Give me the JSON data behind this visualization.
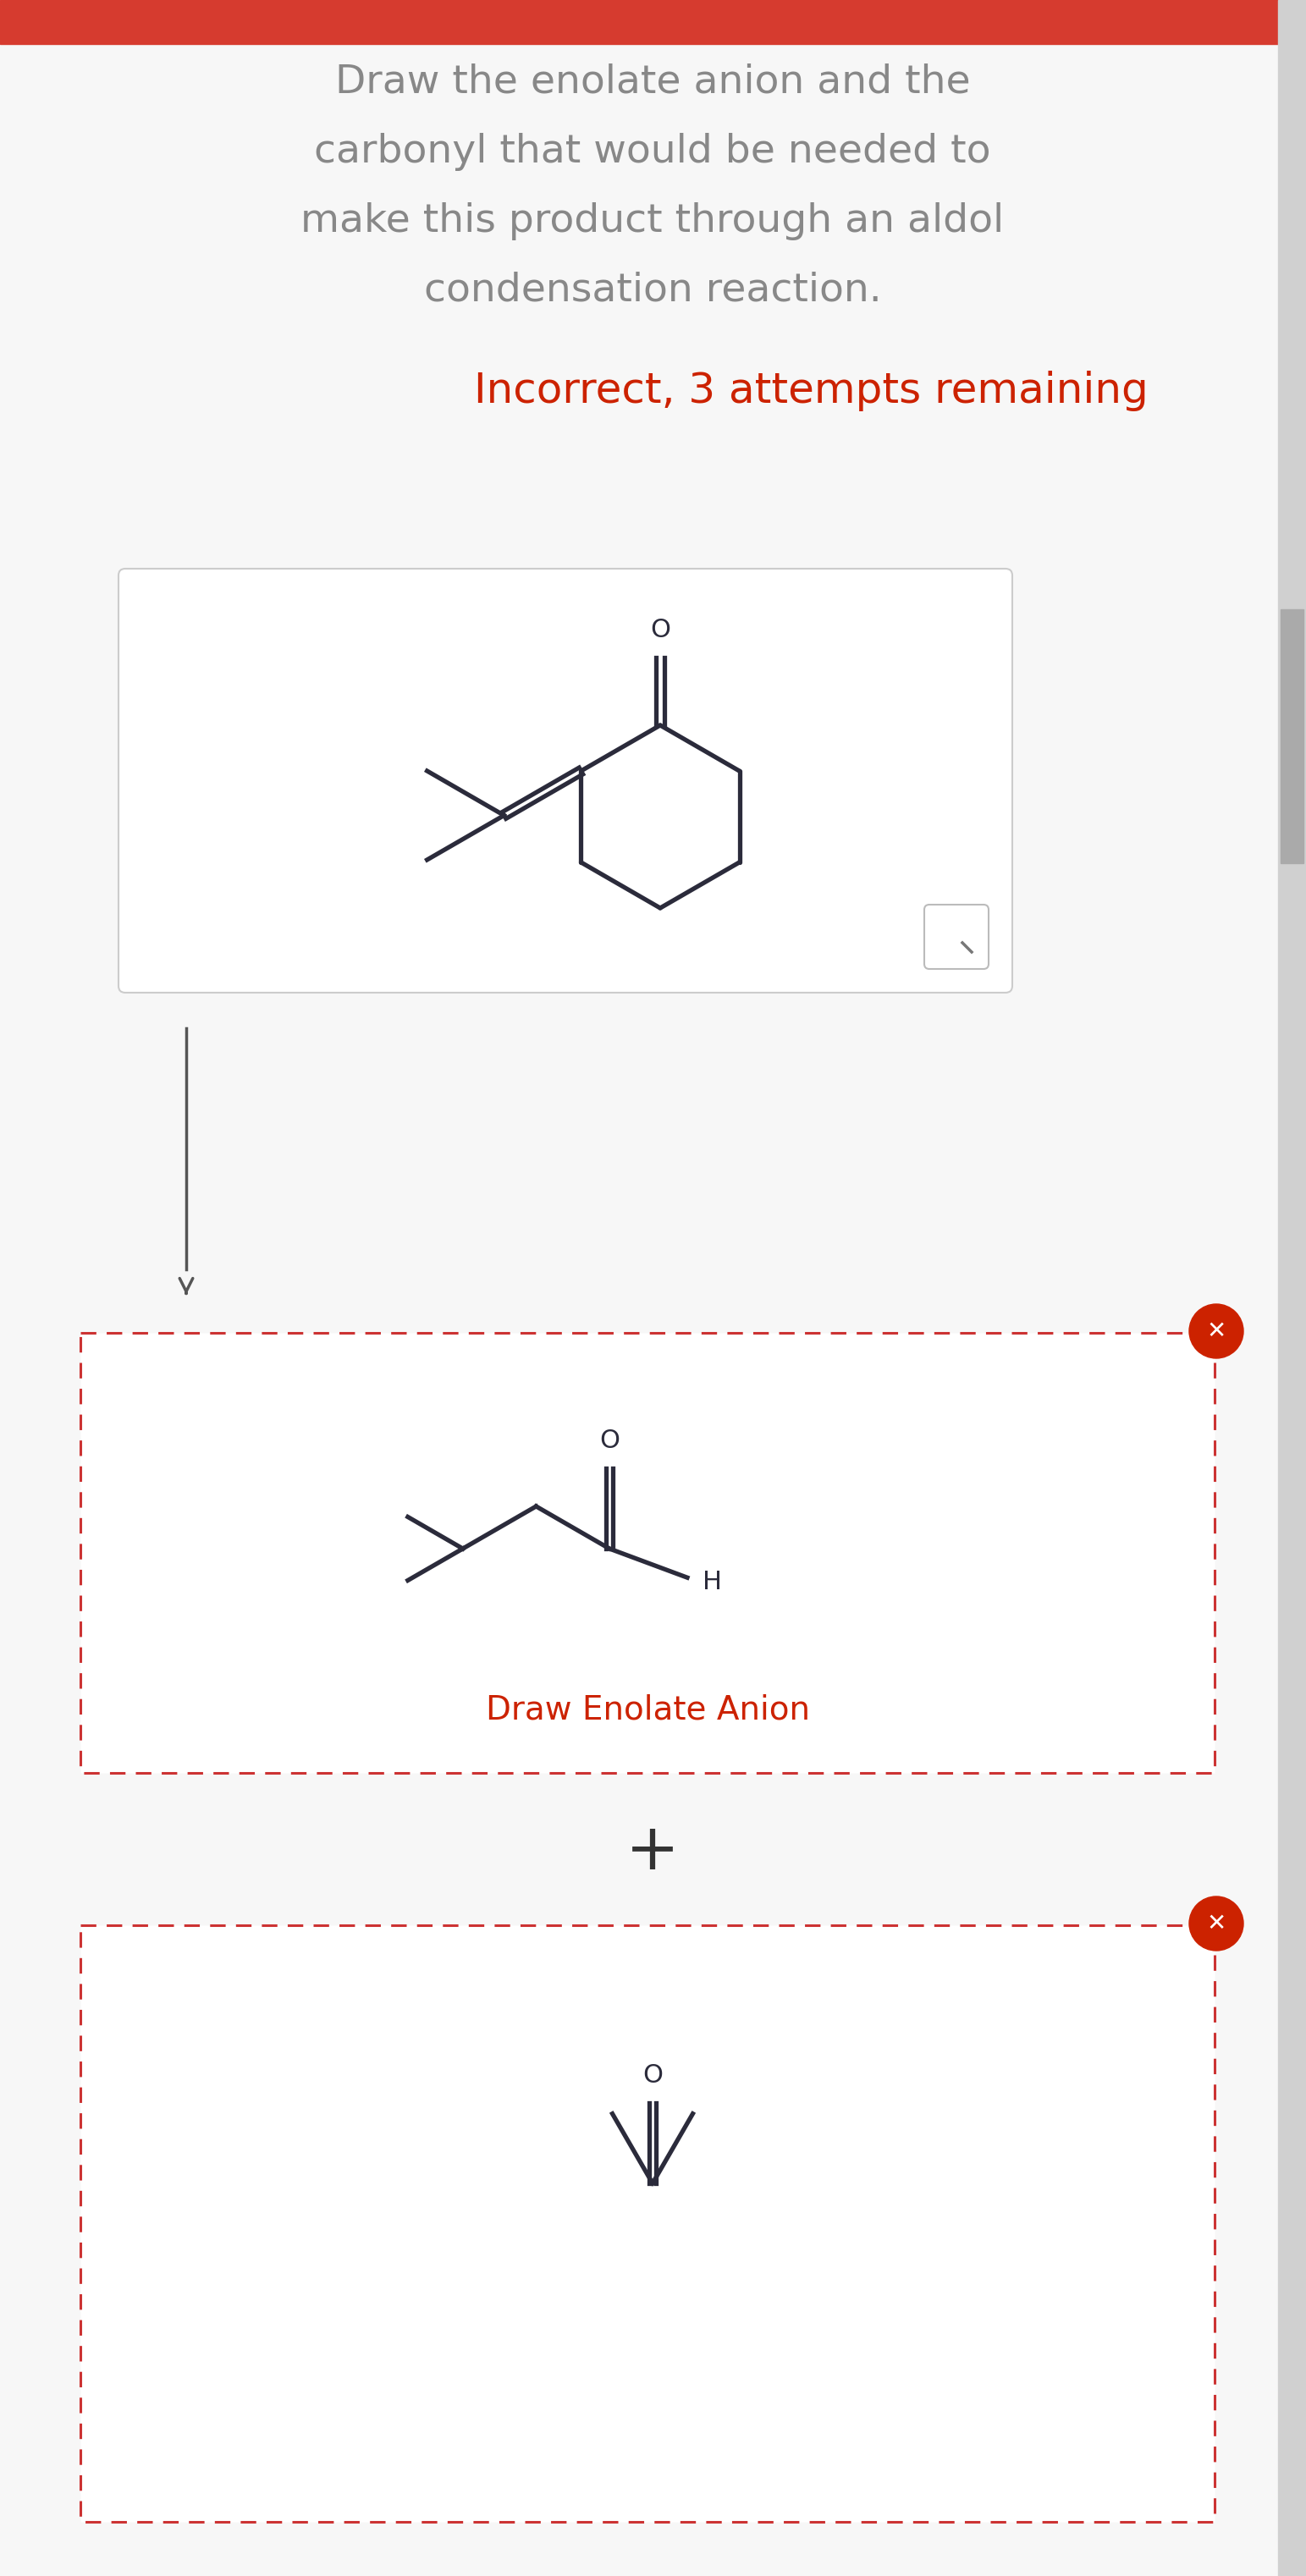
{
  "bg_color": "#f7f7f7",
  "header_color": "#d63b2f",
  "title_line1": "Draw the enolate anion and the",
  "title_line2": "carbonyl that would be needed to",
  "title_line3": "make this product through an aldol",
  "title_line4": "condensation reaction.",
  "title_color": "#888888",
  "title_fontsize": 34,
  "incorrect_text": "Incorrect, 3 attempts remaining",
  "incorrect_color": "#cc2200",
  "incorrect_fontsize": 36,
  "draw_enolate_label": "Draw Enolate Anion",
  "draw_enolate_color": "#cc2200",
  "draw_enolate_fontsize": 28,
  "plus_symbol": "+",
  "plus_fontsize": 55,
  "box_border_color": "#cccccc",
  "dashed_border_color": "#cc3333",
  "close_btn_color": "#cc2200",
  "white": "#ffffff",
  "dark": "#2b2b3b",
  "arrow_color": "#555555",
  "scrollbar_bg": "#d0d0d0",
  "scrollbar_fg": "#aaaaaa"
}
